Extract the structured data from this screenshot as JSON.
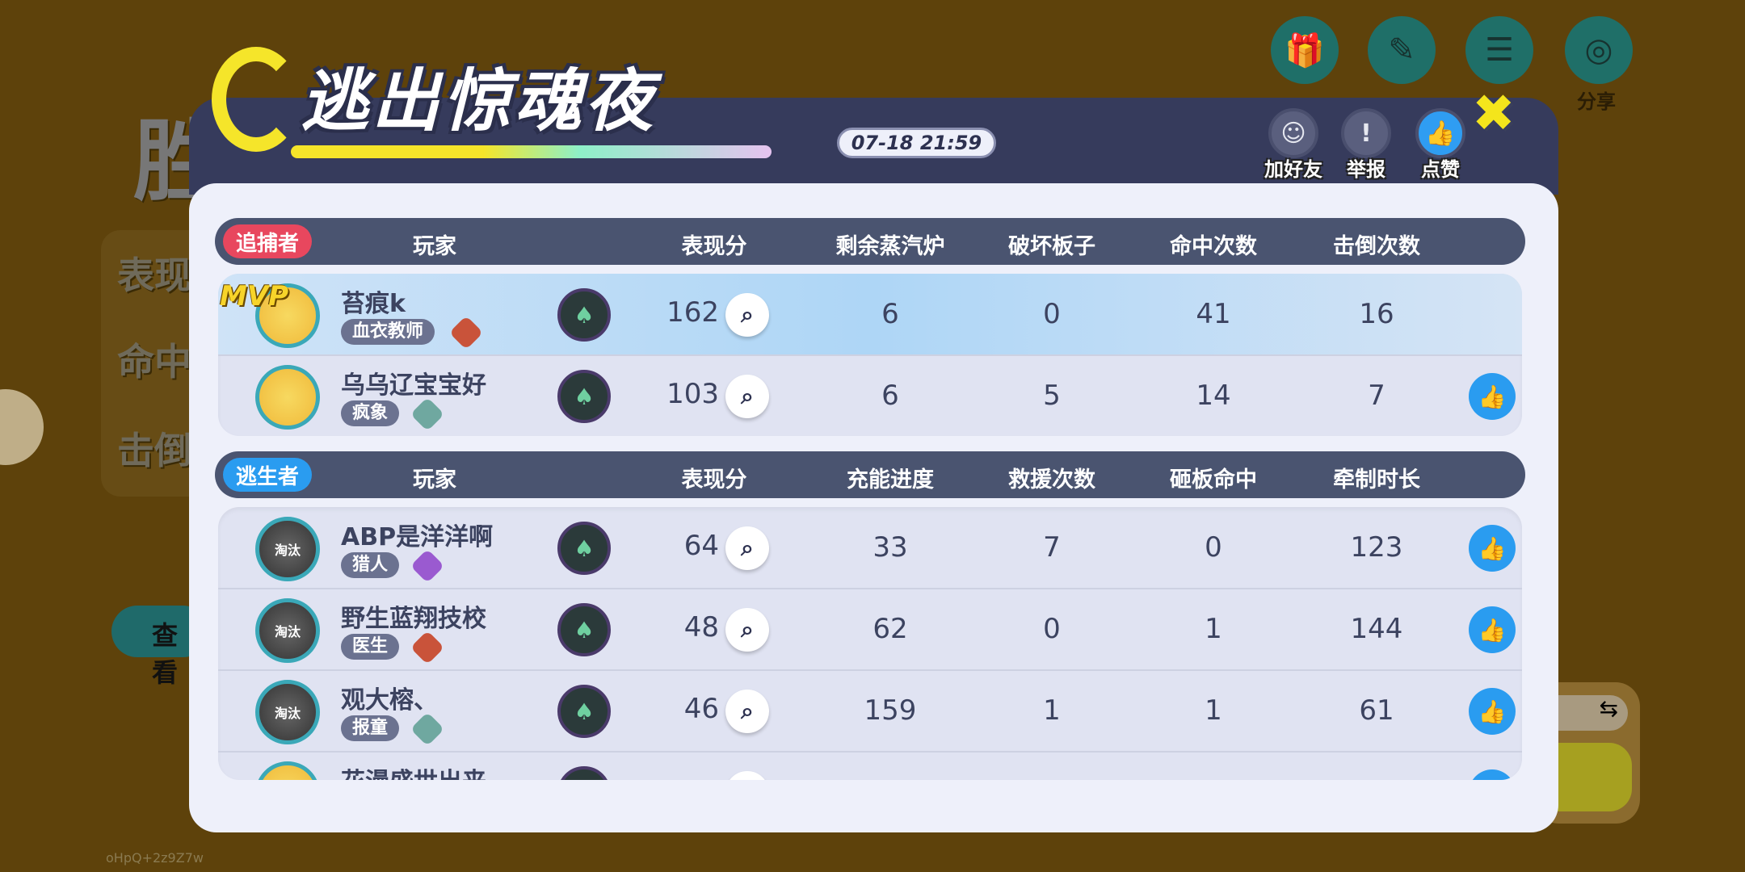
{
  "background": {
    "left_labels": [
      "表现",
      "命中",
      "击倒"
    ],
    "view_button": "查看",
    "share_label": "分享",
    "watermark": "oHpQ+2z9Z7w",
    "swap_icon": "⇆",
    "big_char": "胜"
  },
  "header": {
    "title": "逃出惊魂夜",
    "date": "07-18  21:59",
    "add_friend": "加好友",
    "report": "举报",
    "like": "点赞"
  },
  "hunter": {
    "tag": "追捕者",
    "color": "#e8475e",
    "columns": [
      "玩家",
      "表现分",
      "剩余蒸汽炉",
      "破坏板子",
      "命中次数",
      "击倒次数"
    ],
    "rows": [
      {
        "name": "苔痕k",
        "role": "血衣教师",
        "score": "162",
        "stats": [
          "6",
          "0",
          "41",
          "16"
        ],
        "mvp": "MVP",
        "rank": "#c9533a",
        "liked": false
      },
      {
        "name": "乌乌辽宝宝好",
        "role": "疯象",
        "score": "103",
        "stats": [
          "6",
          "5",
          "14",
          "7"
        ],
        "rank": "#6fa8a0",
        "liked": true
      }
    ]
  },
  "survivor": {
    "tag": "逃生者",
    "color": "#2a9cf0",
    "columns": [
      "玩家",
      "表现分",
      "充能进度",
      "救援次数",
      "砸板命中",
      "牵制时长"
    ],
    "rows": [
      {
        "name": "ABP是洋洋啊",
        "role": "猎人",
        "score": "64",
        "stats": [
          "33",
          "7",
          "0",
          "123"
        ],
        "status": "淘汰",
        "rank": "#9a5ad0",
        "liked": true
      },
      {
        "name": "野生蓝翔技校",
        "role": "医生",
        "score": "48",
        "stats": [
          "62",
          "0",
          "1",
          "144"
        ],
        "status": "淘汰",
        "rank": "#c9533a",
        "liked": true
      },
      {
        "name": "观大榕、",
        "role": "报童",
        "score": "46",
        "stats": [
          "159",
          "1",
          "1",
          "61"
        ],
        "status": "淘汰",
        "rank": "#6fa8a0",
        "liked": true
      },
      {
        "name": "花漫盛世出来",
        "role": "",
        "score": "",
        "stats": [
          "",
          "",
          "",
          ""
        ],
        "liked": true
      }
    ]
  }
}
